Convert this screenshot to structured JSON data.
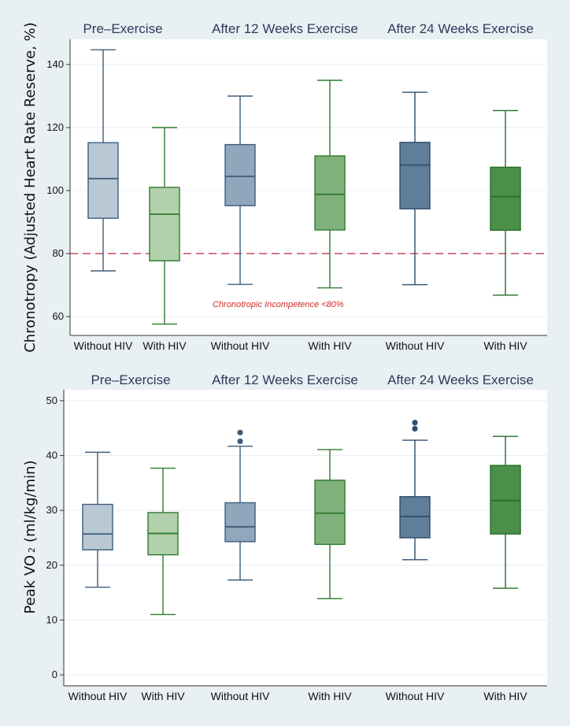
{
  "chart_data": [
    {
      "type": "box",
      "ylabel": "Chronotropy (Adjusted Heart Rate Reserve, %)",
      "ylim": [
        54,
        148
      ],
      "yticks": [
        60,
        80,
        100,
        120,
        140
      ],
      "grid": true,
      "panels": [
        "Pre–Exercise",
        "After 12 Weeks Exercise",
        "After 24 Weeks Exercise"
      ],
      "categories": [
        "Without HIV",
        "With HIV",
        "Without HIV",
        "With HIV",
        "Without HIV",
        "With HIV"
      ],
      "reference_line": {
        "value": 80,
        "label": "Chronotropic Incompetence <80%",
        "color": "#b3283e"
      },
      "boxes": [
        {
          "group": "Without HIV",
          "panel": 0,
          "min": 74.5,
          "q1": 91.2,
          "median": 103.8,
          "q3": 115.2,
          "max": 144.7,
          "outliers": [],
          "fill": "#b9c8d5",
          "stroke": "#3f5d7c"
        },
        {
          "group": "With HIV",
          "panel": 0,
          "min": 57.6,
          "q1": 77.7,
          "median": 92.5,
          "q3": 101.0,
          "max": 120.0,
          "outliers": [],
          "fill": "#b2d0ab",
          "stroke": "#2f7a2f"
        },
        {
          "group": "Without HIV",
          "panel": 1,
          "min": 70.2,
          "q1": 95.2,
          "median": 104.5,
          "q3": 114.6,
          "max": 130.0,
          "outliers": [],
          "fill": "#8fa6bd",
          "stroke": "#3f5d7c"
        },
        {
          "group": "With HIV",
          "panel": 1,
          "min": 69.1,
          "q1": 87.5,
          "median": 98.8,
          "q3": 111.0,
          "max": 135.0,
          "outliers": [],
          "fill": "#80b17c",
          "stroke": "#2f7a2f"
        },
        {
          "group": "Without HIV",
          "panel": 2,
          "min": 70.1,
          "q1": 94.2,
          "median": 108.1,
          "q3": 115.3,
          "max": 131.2,
          "outliers": [],
          "fill": "#5e7e9a",
          "stroke": "#2f4d6c"
        },
        {
          "group": "With HIV",
          "panel": 2,
          "min": 66.8,
          "q1": 87.4,
          "median": 98.1,
          "q3": 107.4,
          "max": 125.4,
          "outliers": [],
          "fill": "#4b8f4b",
          "stroke": "#256d25"
        }
      ]
    },
    {
      "type": "box",
      "ylabel": "Peak VO",
      "ylabel_sub": "2",
      "ylabel_units": "(ml/kg/min)",
      "ylim": [
        -2,
        52
      ],
      "yticks": [
        0,
        10,
        20,
        30,
        40,
        50
      ],
      "grid": true,
      "panels": [
        "Pre–Exercise",
        "After 12 Weeks Exercise",
        "After 24 Weeks Exercise"
      ],
      "categories": [
        "Without HIV",
        "With HIV",
        "Without HIV",
        "With HIV",
        "Without HIV",
        "With HIV"
      ],
      "boxes": [
        {
          "group": "Without HIV",
          "panel": 0,
          "min": 16.0,
          "q1": 22.8,
          "median": 25.7,
          "q3": 31.1,
          "max": 40.6,
          "outliers": [],
          "fill": "#b9c8d5",
          "stroke": "#3f5d7c"
        },
        {
          "group": "With HIV",
          "panel": 0,
          "min": 11.0,
          "q1": 21.9,
          "median": 25.8,
          "q3": 29.6,
          "max": 37.7,
          "outliers": [],
          "fill": "#b2d0ab",
          "stroke": "#2f7a2f"
        },
        {
          "group": "Without HIV",
          "panel": 1,
          "min": 17.3,
          "q1": 24.3,
          "median": 27.0,
          "q3": 31.4,
          "max": 41.7,
          "outliers": [
            42.6,
            44.2
          ],
          "fill": "#8fa6bd",
          "stroke": "#3f5d7c"
        },
        {
          "group": "With HIV",
          "panel": 1,
          "min": 13.9,
          "q1": 23.8,
          "median": 29.5,
          "q3": 35.5,
          "max": 41.1,
          "outliers": [],
          "fill": "#80b17c",
          "stroke": "#2f7a2f"
        },
        {
          "group": "Without HIV",
          "panel": 2,
          "min": 21.0,
          "q1": 25.0,
          "median": 28.9,
          "q3": 32.5,
          "max": 42.8,
          "outliers": [
            44.9,
            46.0
          ],
          "fill": "#5e7e9a",
          "stroke": "#2f4d6c"
        },
        {
          "group": "With HIV",
          "panel": 2,
          "min": 15.8,
          "q1": 25.7,
          "median": 31.8,
          "q3": 38.2,
          "max": 43.5,
          "outliers": [],
          "fill": "#4b8f4b",
          "stroke": "#256d25"
        }
      ]
    }
  ]
}
